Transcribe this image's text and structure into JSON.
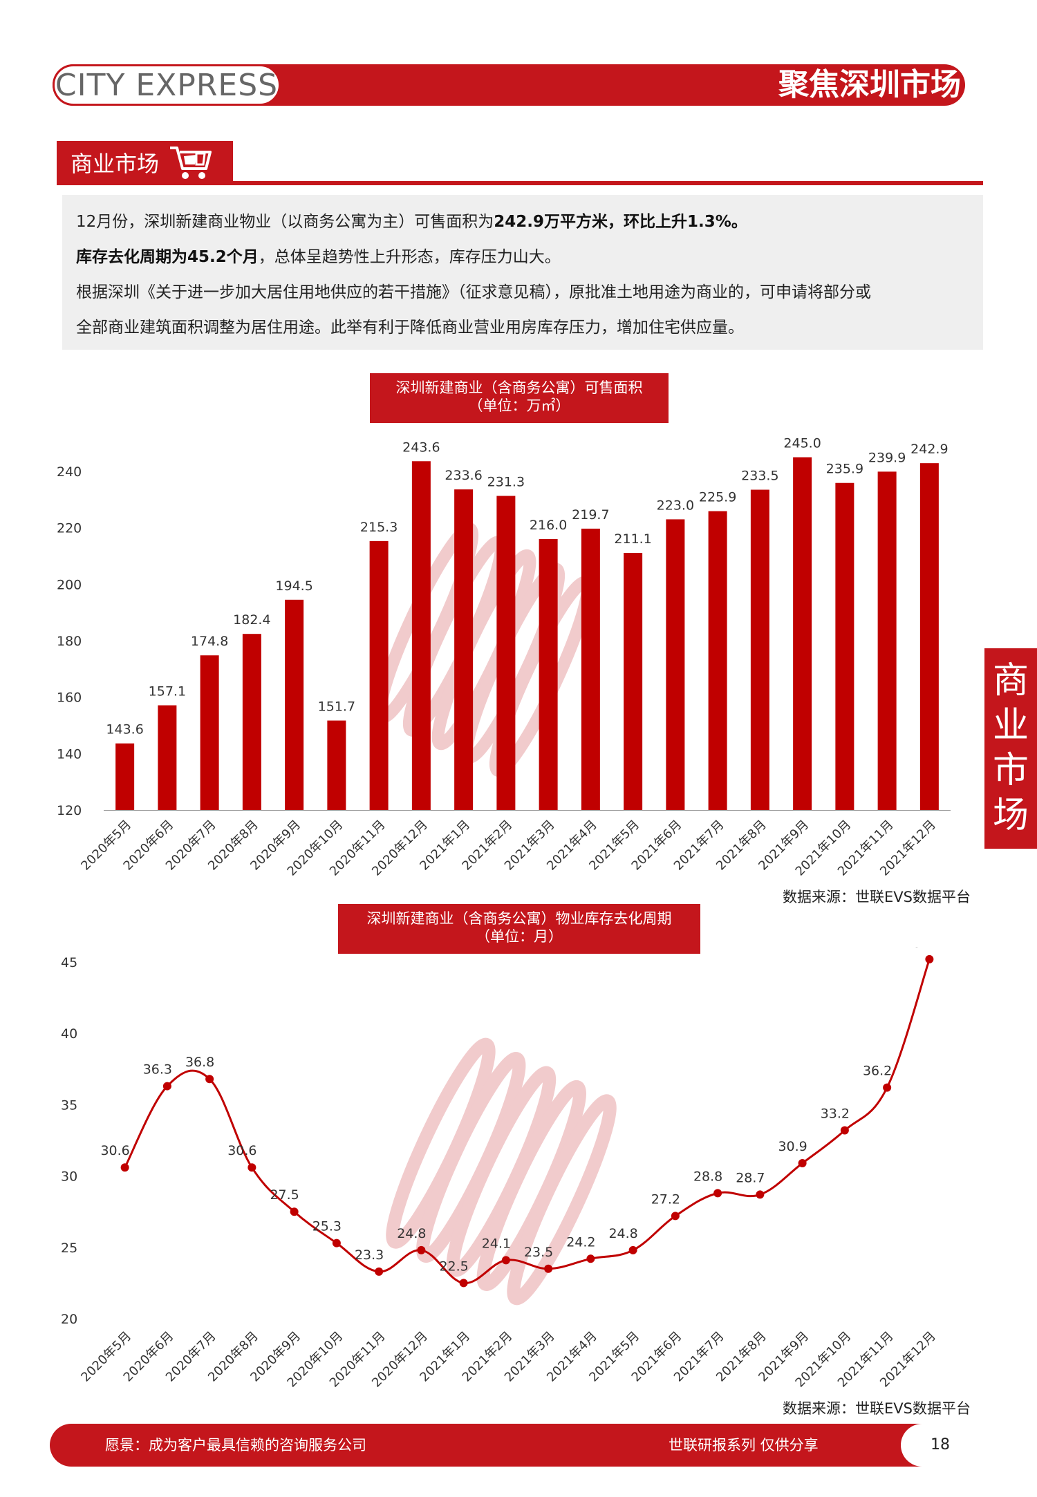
{
  "header": {
    "logo_text": "CITY EXPRESS",
    "title": "聚焦深圳市场"
  },
  "section": {
    "title": "商业市场"
  },
  "intro": {
    "p1_a": "12月份，深圳新建商业物业（以商务公寓为主）可售面积为",
    "p1_b": "242.9万平方米，环比上升1.3%。",
    "p2_a": "库存去化周期为45.2个月",
    "p2_b": "，总体呈趋势性上升形态，库存压力山大。",
    "p3": "根据深圳《关于进一步加大居住用地供应的若干措施》（征求意见稿），原批准土地用途为商业的，可申请将部分或",
    "p4": "全部商业建筑面积调整为居住用途。此举有利于降低商业营业用房库存压力，增加住宅供应量。"
  },
  "side_tab": [
    "商",
    "业",
    "市",
    "场"
  ],
  "footer": {
    "vision": "愿景：成为客户最具信赖的咨询服务公司",
    "series": "世联研报系列  仅供分享",
    "page": "18"
  },
  "colors": {
    "brand_red": "#c4161c",
    "bar_red": "#c00000"
  },
  "chart_data": [
    {
      "type": "bar",
      "title_line1": "深圳新建商业（含商务公寓）可售面积",
      "title_line2": "（单位：万㎡）",
      "source": "数据来源：世联EVS数据平台",
      "categories": [
        "2020年5月",
        "2020年6月",
        "2020年7月",
        "2020年8月",
        "2020年9月",
        "2020年10月",
        "2020年11月",
        "2020年12月",
        "2021年1月",
        "2021年2月",
        "2021年3月",
        "2021年4月",
        "2021年5月",
        "2021年6月",
        "2021年7月",
        "2021年8月",
        "2021年9月",
        "2021年10月",
        "2021年11月",
        "2021年12月"
      ],
      "values": [
        143.6,
        157.1,
        174.8,
        182.4,
        194.5,
        151.7,
        215.3,
        243.6,
        233.6,
        231.3,
        216.0,
        219.7,
        211.1,
        223.0,
        225.9,
        233.5,
        245.0,
        235.9,
        239.9,
        242.9
      ],
      "ylim": [
        120,
        240
      ],
      "yticks": [
        120,
        140,
        160,
        180,
        200,
        220,
        240
      ]
    },
    {
      "type": "line",
      "title_line1": "深圳新建商业（含商务公寓）物业库存去化周期",
      "title_line2": "（单位：月）",
      "source": "数据来源：世联EVS数据平台",
      "categories": [
        "2020年5月",
        "2020年6月",
        "2020年7月",
        "2020年8月",
        "2020年9月",
        "2020年10月",
        "2020年11月",
        "2020年12月",
        "2021年1月",
        "2021年2月",
        "2021年3月",
        "2021年4月",
        "2021年5月",
        "2021年6月",
        "2021年7月",
        "2021年8月",
        "2021年9月",
        "2021年10月",
        "2021年11月",
        "2021年12月"
      ],
      "values": [
        30.6,
        36.3,
        36.8,
        30.6,
        27.5,
        25.3,
        23.3,
        24.8,
        22.5,
        24.1,
        23.5,
        24.2,
        24.8,
        27.2,
        28.8,
        28.7,
        30.9,
        33.2,
        36.2,
        45.2
      ],
      "ylim": [
        20,
        45
      ],
      "yticks": [
        20,
        25,
        30,
        35,
        40,
        45
      ]
    }
  ]
}
